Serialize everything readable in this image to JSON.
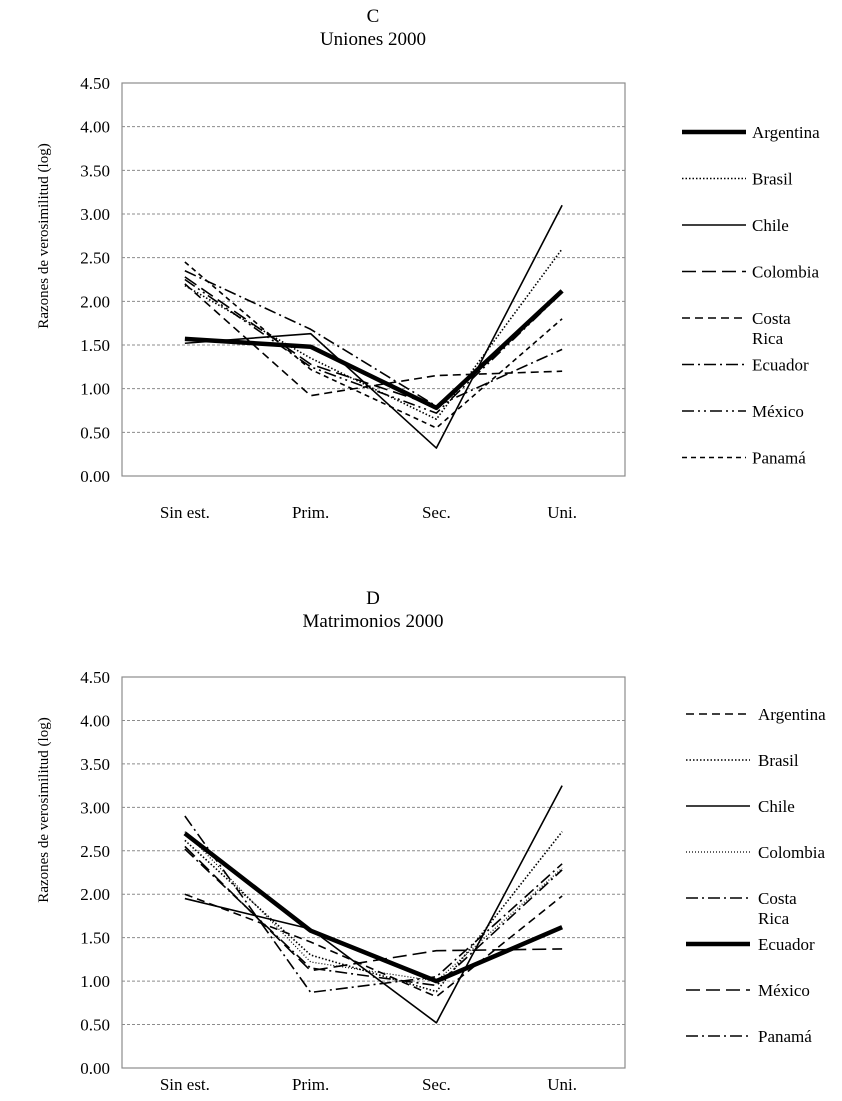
{
  "chart_data": [
    {
      "type": "line",
      "letter": "C",
      "title": "Uniones 2000",
      "xlabel": "",
      "ylabel": "Razones de verosimilitud (log)",
      "ylim": [
        0,
        4.5
      ],
      "yticks": [
        "0.00",
        "0.50",
        "1.00",
        "1.50",
        "2.00",
        "2.50",
        "3.00",
        "3.50",
        "4.00",
        "4.50"
      ],
      "grid": true,
      "legend_position": "right",
      "categories": [
        "Sin est.",
        "Prim.",
        "Sec.",
        "Uni."
      ],
      "series": [
        {
          "name": "Argentina",
          "style": "thick",
          "values": [
            1.57,
            1.48,
            0.78,
            2.12
          ]
        },
        {
          "name": "Brasil",
          "style": "dotted",
          "values": [
            2.18,
            1.35,
            0.65,
            2.6
          ]
        },
        {
          "name": "Chile",
          "style": "solid",
          "values": [
            1.52,
            1.63,
            0.32,
            3.1
          ]
        },
        {
          "name": "Colombia",
          "style": "longdash",
          "values": [
            2.28,
            1.28,
            0.8,
            2.12
          ]
        },
        {
          "name": "Costa\nRica",
          "style": "dash",
          "values": [
            2.2,
            0.92,
            1.15,
            1.2
          ]
        },
        {
          "name": "Ecuador",
          "style": "dashdot",
          "values": [
            2.35,
            1.68,
            0.8,
            1.45
          ]
        },
        {
          "name": "México",
          "style": "dashdotdot",
          "values": [
            2.25,
            1.25,
            0.72,
            2.1
          ]
        },
        {
          "name": "Panamá",
          "style": "shortdash",
          "values": [
            2.45,
            1.22,
            0.55,
            1.8
          ]
        }
      ]
    },
    {
      "type": "line",
      "letter": "D",
      "title": "Matrimonios 2000",
      "xlabel": "",
      "ylabel": "Razones de verosimilitud (log)",
      "ylim": [
        0,
        4.5
      ],
      "yticks": [
        "0.00",
        "0.50",
        "1.00",
        "1.50",
        "2.00",
        "2.50",
        "3.00",
        "3.50",
        "4.00",
        "4.50"
      ],
      "grid": true,
      "legend_position": "right",
      "categories": [
        "Sin est.",
        "Prim.",
        "Sec.",
        "Uni."
      ],
      "series": [
        {
          "name": "Argentina",
          "style": "dash",
          "values": [
            2.0,
            1.45,
            0.82,
            1.98
          ]
        },
        {
          "name": "Brasil",
          "style": "dotted",
          "values": [
            2.62,
            1.3,
            0.88,
            2.72
          ]
        },
        {
          "name": "Chile",
          "style": "solid",
          "values": [
            1.95,
            1.6,
            0.52,
            3.25
          ]
        },
        {
          "name": "Colombia",
          "style": "dotted_fine",
          "values": [
            2.72,
            1.22,
            1.0,
            2.3
          ]
        },
        {
          "name": "Costa\nRica",
          "style": "dashdot",
          "values": [
            2.9,
            0.87,
            1.05,
            2.35
          ]
        },
        {
          "name": "Ecuador",
          "style": "thick",
          "values": [
            2.7,
            1.58,
            1.0,
            1.62
          ]
        },
        {
          "name": "México",
          "style": "longdash",
          "values": [
            2.55,
            1.12,
            1.35,
            1.37
          ]
        },
        {
          "name": "Panamá",
          "style": "dashdot",
          "values": [
            2.52,
            1.15,
            0.95,
            2.28
          ]
        }
      ]
    }
  ]
}
